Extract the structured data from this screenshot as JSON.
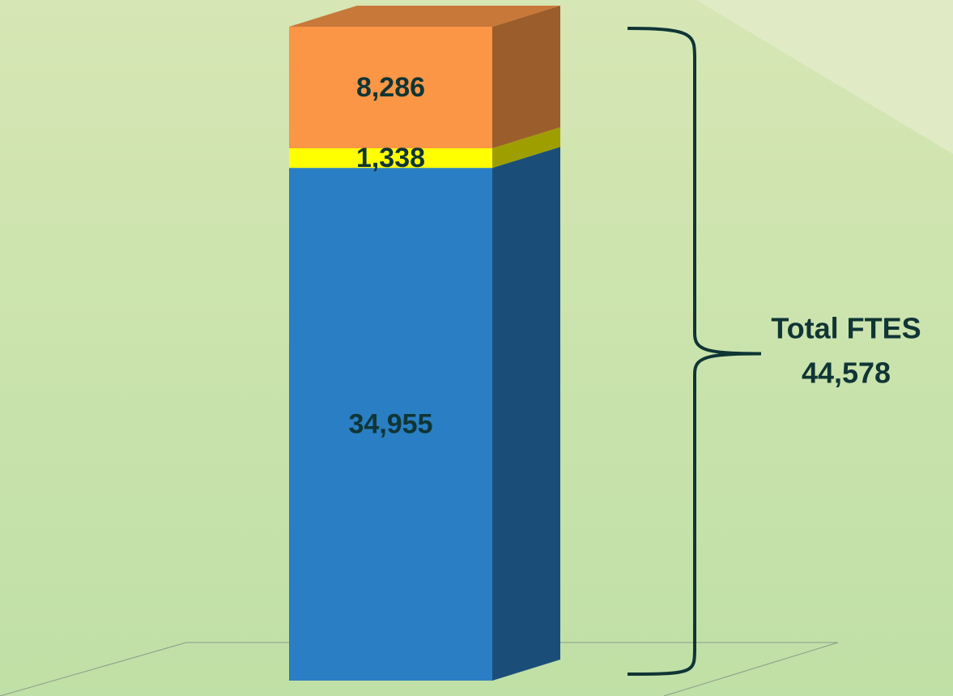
{
  "chart_data": {
    "type": "bar",
    "stacked": true,
    "series": [
      {
        "color": "#2a7ec3",
        "values": [
          34955
        ],
        "value_labels": [
          "34,955"
        ]
      },
      {
        "color": "#ffff00",
        "values": [
          1338
        ],
        "value_labels": [
          "1,338"
        ]
      },
      {
        "color": "#fb9646",
        "values": [
          8286
        ],
        "value_labels": [
          "8,286"
        ]
      }
    ],
    "total": {
      "title": "Total FTES",
      "value": 44578,
      "label": "44,578"
    }
  }
}
